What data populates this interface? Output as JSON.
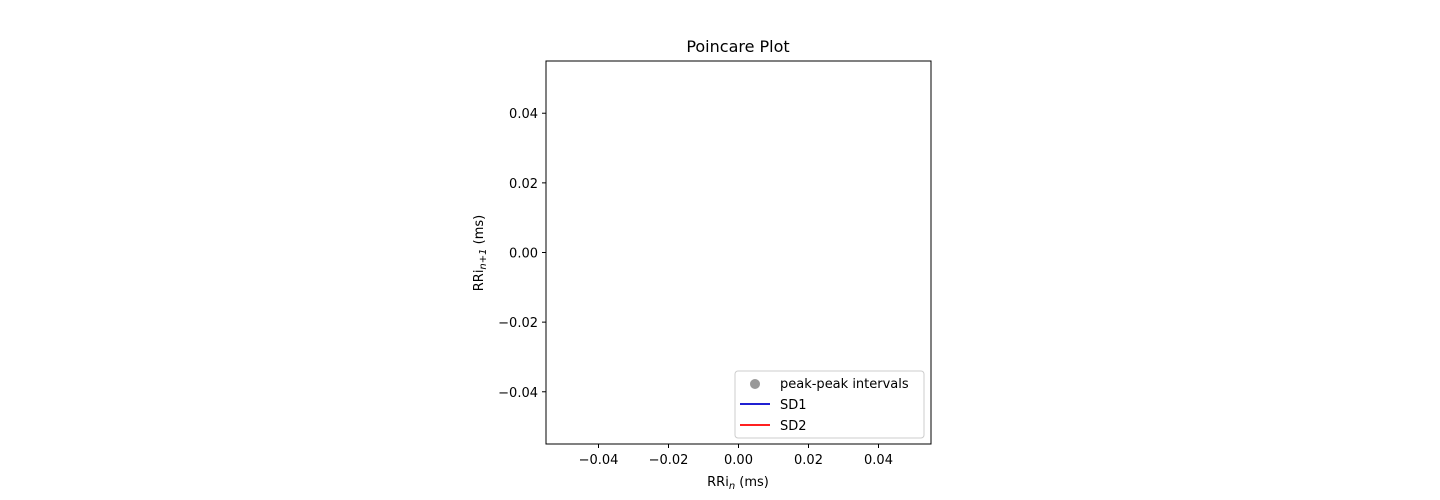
{
  "chart_data": {
    "type": "scatter",
    "title": "Poincare Plot",
    "xlabel": {
      "base": "RRi",
      "sub": "n",
      "unit": " (ms)"
    },
    "ylabel": {
      "base": "RRi",
      "sub": "n+1",
      "unit": " (ms)"
    },
    "xlim": [
      -0.055,
      0.055
    ],
    "ylim": [
      -0.055,
      0.055
    ],
    "xticks": [
      -0.04,
      -0.02,
      0.0,
      0.02,
      0.04
    ],
    "yticks": [
      -0.04,
      -0.02,
      0.0,
      0.02,
      0.04
    ],
    "xtick_labels": [
      "−0.04",
      "−0.02",
      "0.00",
      "0.02",
      "0.04"
    ],
    "ytick_labels": [
      "−0.04",
      "−0.02",
      "0.00",
      "0.02",
      "0.04"
    ],
    "grid": false,
    "legend_position": "lower-right",
    "series": [
      {
        "name": "peak-peak intervals",
        "kind": "marker",
        "color": "#999999",
        "x": [],
        "y": []
      },
      {
        "name": "SD1",
        "kind": "line",
        "color": "#0000cc",
        "x": [],
        "y": []
      },
      {
        "name": "SD2",
        "kind": "line",
        "color": "#ff0000",
        "x": [],
        "y": []
      }
    ]
  }
}
